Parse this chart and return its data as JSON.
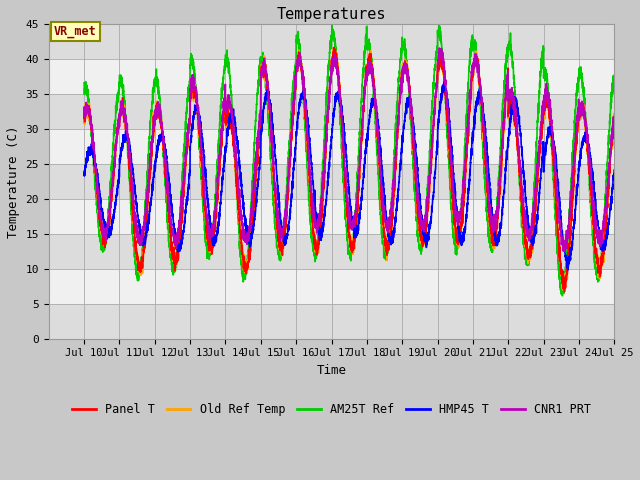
{
  "title": "Temperatures",
  "xlabel": "Time",
  "ylabel": "Temperature (C)",
  "ylim": [
    0,
    45
  ],
  "yticks": [
    0,
    5,
    10,
    15,
    20,
    25,
    30,
    35,
    40,
    45
  ],
  "xtick_labels": [
    "Jul 10",
    "Jul 11",
    "Jul 12",
    "Jul 13",
    "Jul 14",
    "Jul 15",
    "Jul 16",
    "Jul 17",
    "Jul 18",
    "Jul 19",
    "Jul 20",
    "Jul 21",
    "Jul 22",
    "Jul 23",
    "Jul 24",
    "Jul 25"
  ],
  "annotation_text": "VR_met",
  "series_colors": {
    "Panel T": "#FF0000",
    "Old Ref Temp": "#FFA500",
    "AM25T Ref": "#00CC00",
    "HMP45 T": "#0000FF",
    "CNR1 PRT": "#BB00BB"
  },
  "legend_order": [
    "Panel T",
    "Old Ref Temp",
    "AM25T Ref",
    "HMP45 T",
    "CNR1 PRT"
  ],
  "num_days": 15,
  "start_day": 10,
  "samples_per_day": 288,
  "band_light": "#F0F0F0",
  "band_dark": "#DCDCDC",
  "band_bottom": "#E8E8E8",
  "fig_bg": "#C8C8C8",
  "daily_mins_panel": [
    14,
    10,
    11,
    13,
    10,
    13,
    13,
    13,
    13,
    14,
    14,
    14,
    12,
    8,
    10
  ],
  "daily_maxs_panel": [
    33,
    33,
    33,
    36,
    32,
    39,
    40,
    41,
    40,
    39,
    40,
    40,
    34,
    34,
    33
  ],
  "daily_mins_am25t": [
    13,
    9,
    10,
    12,
    9,
    12,
    12,
    12,
    12,
    13,
    13,
    13,
    11,
    7,
    9
  ],
  "daily_maxs_am25t": [
    36,
    37,
    37,
    40,
    40,
    40,
    43,
    44,
    42,
    42,
    44,
    42,
    42,
    38,
    38
  ],
  "daily_mins_hmp45": [
    15,
    14,
    13,
    14,
    14,
    14,
    15,
    15,
    14,
    14,
    14,
    14,
    14,
    11,
    13
  ],
  "daily_maxs_hmp45": [
    27,
    29,
    29,
    33,
    32,
    35,
    35,
    35,
    34,
    34,
    36,
    35,
    34,
    30,
    29
  ],
  "daily_mins_cnr1": [
    15,
    14,
    14,
    15,
    14,
    15,
    16,
    16,
    16,
    16,
    17,
    16,
    15,
    13,
    14
  ],
  "daily_maxs_cnr1": [
    33,
    33,
    33,
    37,
    34,
    39,
    40,
    40,
    39,
    39,
    41,
    40,
    35,
    35,
    33
  ]
}
